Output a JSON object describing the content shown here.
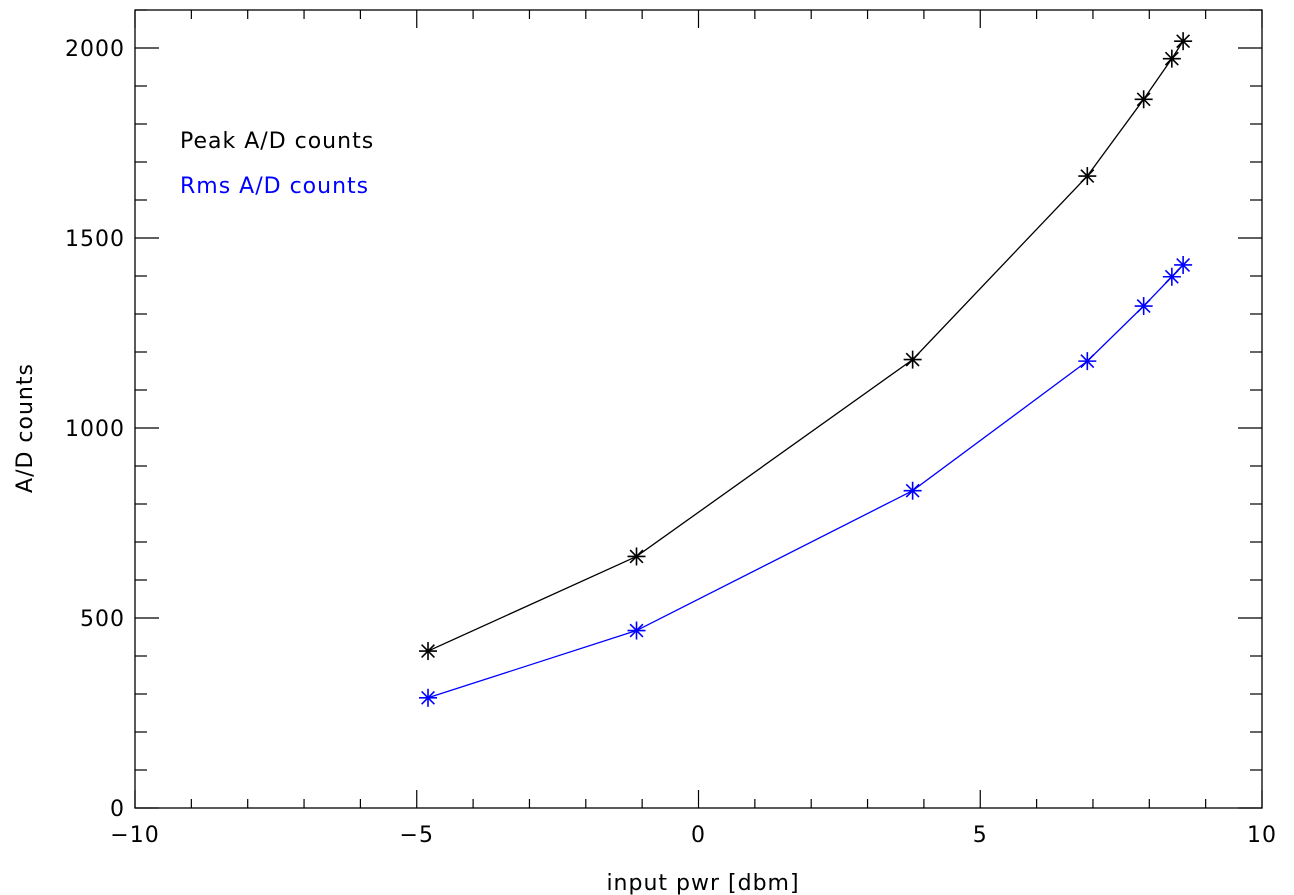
{
  "chart_data": {
    "type": "line",
    "xlabel": "input pwr [dbm]",
    "ylabel": "A/D counts",
    "xlim": [
      -10,
      10
    ],
    "ylim": [
      0,
      2100
    ],
    "x_ticks": [
      -10,
      -5,
      0,
      5,
      10
    ],
    "x_minor_step": 1,
    "y_ticks": [
      0,
      500,
      1000,
      1500,
      2000
    ],
    "y_minor_step": 100,
    "grid": false,
    "legend_position": "top-left",
    "marker": "asterisk",
    "series": [
      {
        "name": "Peak A/D counts",
        "color": "#000000",
        "x": [
          -4.8,
          -1.1,
          3.8,
          6.9,
          7.9,
          8.4,
          8.6
        ],
        "y": [
          413,
          662,
          1180,
          1663,
          1865,
          1972,
          2018
        ]
      },
      {
        "name": "Rms A/D counts",
        "color": "#0000ff",
        "x": [
          -4.8,
          -1.1,
          3.8,
          6.9,
          7.9,
          8.4,
          8.6
        ],
        "y": [
          290,
          467,
          835,
          1176,
          1321,
          1398,
          1429
        ]
      }
    ]
  }
}
